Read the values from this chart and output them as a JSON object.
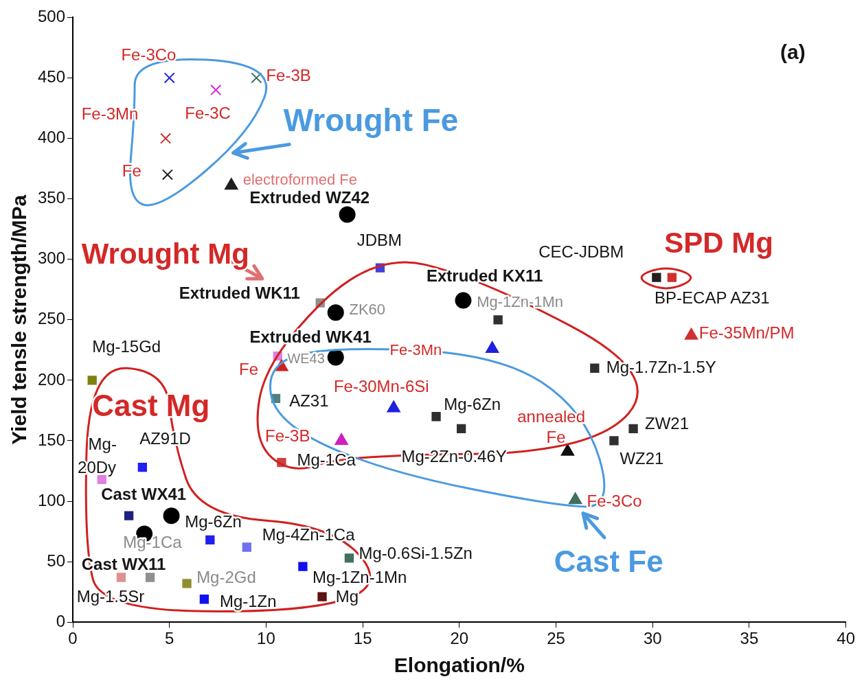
{
  "chart_data": {
    "type": "scatter",
    "xlabel": "Elongation/%",
    "ylabel": "Yield tensle strength/MPa",
    "xlim": [
      0,
      40
    ],
    "xticks": [
      0,
      5,
      10,
      15,
      20,
      25,
      30,
      35,
      40
    ],
    "ylim": [
      0,
      500
    ],
    "yticks": [
      0,
      50,
      100,
      150,
      200,
      250,
      300,
      350,
      400,
      450,
      500
    ],
    "grid": false,
    "series": [
      {
        "marker": "cross",
        "colors": [
          "#2020e0",
          "#e020e0",
          "#407060",
          "#d03030",
          "#202020"
        ],
        "x": [
          5,
          7.4,
          9.5,
          4.8,
          4.9
        ],
        "values": [
          450,
          440,
          450,
          400,
          370
        ]
      },
      {
        "marker": "triangle",
        "colors": [
          "#202020",
          "#d03030",
          "#d02020",
          "#2020e0",
          "#2020e0",
          "#d020c0",
          "#101010",
          "#407060"
        ],
        "x": [
          8.2,
          32,
          10.8,
          21.7,
          16.6,
          13.9,
          25.6,
          26
        ],
        "values": [
          361,
          237,
          211,
          226,
          177,
          150,
          141,
          101
        ]
      },
      {
        "marker": "circle",
        "colors": [
          "#000000",
          "#000000",
          "#000000",
          "#000000",
          "#000000",
          "#000000"
        ],
        "x": [
          14.2,
          20.2,
          13.6,
          13.6,
          5.1,
          3.7
        ],
        "values": [
          337,
          266,
          256,
          219,
          88,
          73
        ]
      },
      {
        "marker": "square",
        "colors": [
          "#4040e0",
          "#909090",
          "#303030",
          "#e080e0",
          "#508080",
          "#303030",
          "#303030",
          "#303030",
          "#303030",
          "#303030",
          "#d04040",
          "#202020",
          "#d03030"
        ],
        "x": [
          15.9,
          12.8,
          22,
          10.6,
          10.5,
          27,
          18.8,
          20.1,
          29,
          28,
          10.8,
          30.2,
          31
        ],
        "values": [
          293,
          264,
          250,
          220,
          185,
          210,
          170,
          160,
          160,
          150,
          132,
          285,
          285
        ]
      },
      {
        "marker": "square",
        "colors": [
          "#808010",
          "#e080e0",
          "#2020f0",
          "#202080",
          "#2020f0",
          "#7070f0",
          "#407060",
          "#1010f0",
          "#909030",
          "#909090",
          "#e09090",
          "#1010f0",
          "#601010"
        ],
        "x": [
          1,
          1.5,
          3.6,
          2.9,
          7.1,
          9,
          14.3,
          11.9,
          5.9,
          4,
          2.5,
          6.8,
          12.9
        ],
        "values": [
          200,
          118,
          128,
          88,
          68,
          62,
          53,
          46,
          32,
          37,
          37,
          19,
          21
        ]
      }
    ],
    "annotations": [
      "(a)",
      "Fe-3Co",
      "Fe-3B",
      "Fe-3Mn",
      "Fe-3C",
      "Fe",
      "Wrought Fe",
      "electroformed Fe",
      "Extruded WZ42",
      "JDBM",
      "Wrought Mg",
      "CEC-JDBM",
      "SPD Mg",
      "Extruded KX11",
      "Mg-1Zn-1Mn",
      "BP-ECAP AZ31",
      "Extruded WK11",
      "ZK60",
      "Extruded WK41",
      "Fe-35Mn/PM",
      "Mg-15Gd",
      "WE43",
      "Fe-3Mn",
      "Fe",
      "Mg-1.7Zn-1.5Y",
      "Fe-30Mn-6Si",
      "Cast Mg",
      "AZ31",
      "Mg-6Zn",
      "annealed",
      "Fe",
      "ZW21",
      "Mg-",
      "AZ91D",
      "Fe-3B",
      "WZ21",
      "Mg-1Ca",
      "Mg-2Zn-0.46Y",
      "20Dy",
      "Cast WX41",
      "Mg-6Zn",
      "Fe-3Co",
      "Mg-1Ca",
      "Mg-4Zn-1Ca",
      "Mg-0.6Si-1.5Zn",
      "Cast WX11",
      "Cast Fe",
      "Mg-2Gd",
      "Mg-1Zn-1Mn",
      "Mg-1.5Sr",
      "Mg-1Zn",
      "Mg"
    ]
  }
}
